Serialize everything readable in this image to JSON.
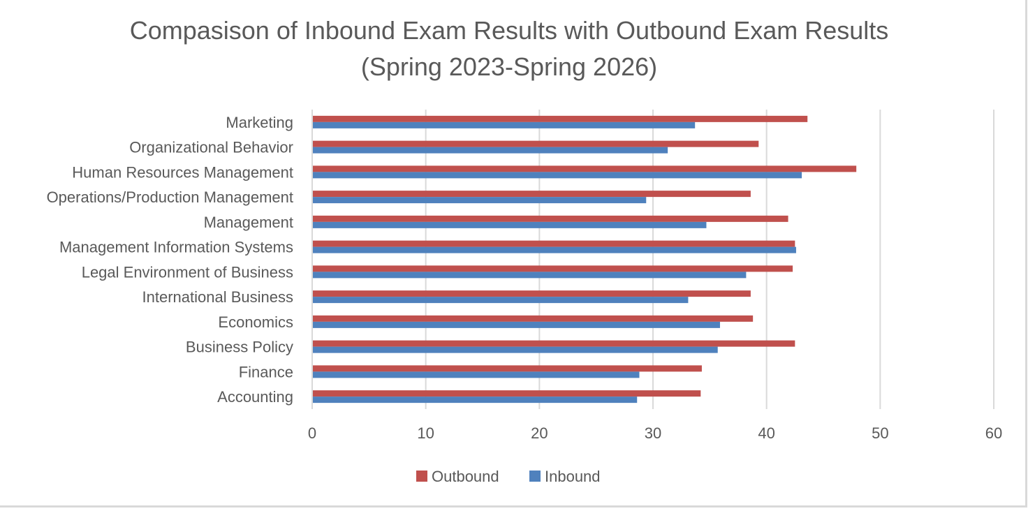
{
  "chart_data": {
    "type": "bar",
    "orientation": "horizontal",
    "title": "Compasison of Inbound Exam Results with Outbound Exam Results",
    "subtitle": "(Spring 2023-Spring 2026)",
    "categories": [
      "Marketing",
      "Organizational Behavior",
      "Human Resources Management",
      "Operations/Production Management",
      "Management",
      "Management Information Systems",
      "Legal Environment of Business",
      "International Business",
      "Economics",
      "Business Policy",
      "Finance",
      "Accounting"
    ],
    "series": [
      {
        "name": "Outbound",
        "color": "#c0504d",
        "values": [
          43.6,
          39.3,
          47.9,
          38.6,
          41.9,
          42.5,
          42.3,
          38.6,
          38.8,
          42.5,
          34.3,
          34.2
        ]
      },
      {
        "name": "Inbound",
        "color": "#4f81bd",
        "values": [
          33.7,
          31.3,
          43.1,
          29.4,
          34.7,
          42.6,
          38.2,
          33.1,
          35.9,
          35.7,
          28.8,
          28.6
        ]
      }
    ],
    "xlim": [
      0,
      60
    ],
    "xticks": [
      0,
      10,
      20,
      30,
      40,
      50,
      60
    ],
    "grid": true,
    "legend_position": "bottom"
  }
}
